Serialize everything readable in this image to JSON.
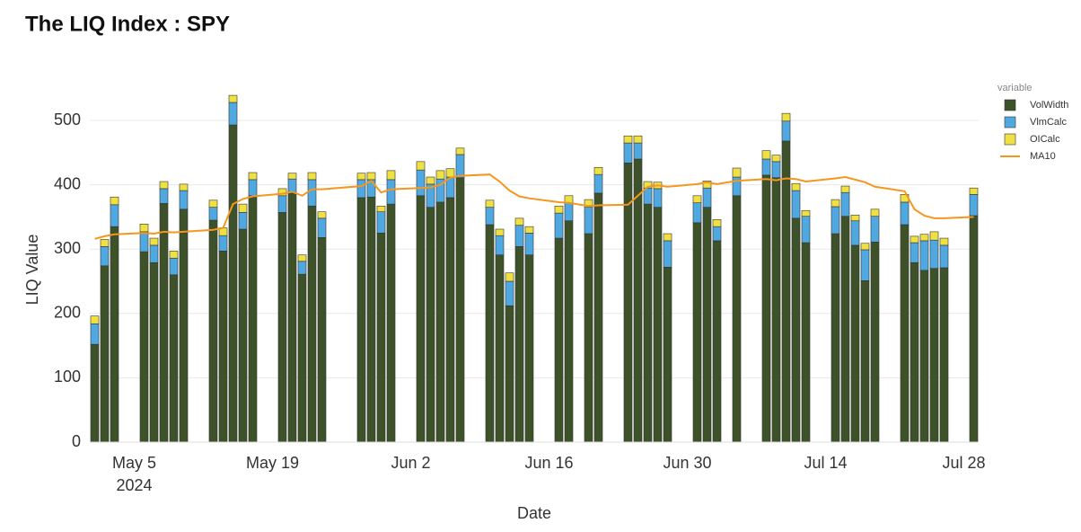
{
  "chart_data": {
    "type": "bar",
    "stacked": true,
    "title": "The LIQ Index : SPY",
    "xlabel": "Date",
    "ylabel": "LIQ Value",
    "legend_title": "variable",
    "legend": "right",
    "x": [
      "2024-05-01",
      "2024-05-02",
      "2024-05-03",
      "2024-05-06",
      "2024-05-07",
      "2024-05-08",
      "2024-05-09",
      "2024-05-10",
      "2024-05-13",
      "2024-05-14",
      "2024-05-15",
      "2024-05-16",
      "2024-05-17",
      "2024-05-20",
      "2024-05-21",
      "2024-05-22",
      "2024-05-23",
      "2024-05-24",
      "2024-05-28",
      "2024-05-29",
      "2024-05-30",
      "2024-05-31",
      "2024-06-03",
      "2024-06-04",
      "2024-06-05",
      "2024-06-06",
      "2024-06-07",
      "2024-06-10",
      "2024-06-11",
      "2024-06-12",
      "2024-06-13",
      "2024-06-14",
      "2024-06-17",
      "2024-06-18",
      "2024-06-20",
      "2024-06-21",
      "2024-06-24",
      "2024-06-25",
      "2024-06-26",
      "2024-06-27",
      "2024-06-28",
      "2024-07-01",
      "2024-07-02",
      "2024-07-03",
      "2024-07-05",
      "2024-07-08",
      "2024-07-09",
      "2024-07-10",
      "2024-07-11",
      "2024-07-12",
      "2024-07-15",
      "2024-07-16",
      "2024-07-17",
      "2024-07-18",
      "2024-07-19",
      "2024-07-22",
      "2024-07-23",
      "2024-07-24",
      "2024-07-25",
      "2024-07-26",
      "2024-07-29"
    ],
    "series": [
      {
        "name": "VolWidth",
        "color": "#3d5229",
        "values": [
          152,
          274,
          335,
          296,
          279,
          371,
          260,
          362,
          345,
          297,
          493,
          331,
          383,
          357,
          387,
          261,
          367,
          318,
          380,
          381,
          325,
          370,
          383,
          365,
          373,
          380,
          411,
          338,
          291,
          212,
          304,
          291,
          317,
          344,
          324,
          387,
          434,
          440,
          370,
          365,
          272,
          341,
          365,
          313,
          383,
          415,
          411,
          468,
          348,
          310,
          324,
          351,
          306,
          251,
          311,
          338,
          279,
          267,
          270,
          271,
          352
        ]
      },
      {
        "name": "VlmCalc",
        "color": "#4fa9e0",
        "values": [
          32,
          30,
          34,
          31,
          27,
          23,
          26,
          29,
          20,
          24,
          35,
          26,
          25,
          26,
          22,
          20,
          41,
          30,
          28,
          27,
          33,
          38,
          40,
          36,
          36,
          32,
          36,
          27,
          30,
          38,
          33,
          34,
          39,
          28,
          41,
          29,
          31,
          25,
          25,
          29,
          41,
          31,
          30,
          22,
          29,
          25,
          25,
          31,
          43,
          41,
          42,
          37,
          38,
          48,
          40,
          35,
          31,
          46,
          44,
          35,
          33
        ]
      },
      {
        "name": "OICalc",
        "color": "#f0e042",
        "values": [
          12,
          11,
          12,
          12,
          11,
          11,
          11,
          10,
          11,
          12,
          11,
          13,
          11,
          11,
          9,
          10,
          11,
          10,
          10,
          11,
          9,
          14,
          13,
          11,
          13,
          13,
          10,
          11,
          10,
          13,
          11,
          10,
          11,
          11,
          12,
          11,
          11,
          11,
          10,
          10,
          11,
          11,
          11,
          11,
          14,
          13,
          10,
          12,
          11,
          9,
          11,
          10,
          9,
          10,
          11,
          12,
          10,
          10,
          13,
          11,
          10
        ]
      },
      {
        "name": "MA10",
        "type": "line",
        "color": "#f5961e",
        "values": [
          316,
          320,
          323,
          325,
          324,
          327,
          326,
          327,
          330,
          333,
          370,
          378,
          382,
          386,
          389,
          383,
          393,
          393,
          398,
          406,
          388,
          393,
          395,
          396,
          400,
          411,
          414,
          416,
          405,
          391,
          382,
          379,
          373,
          372,
          367,
          368,
          369,
          383,
          397,
          399,
          397,
          401,
          404,
          401,
          406,
          409,
          407,
          410,
          409,
          405,
          410,
          412,
          408,
          404,
          397,
          390,
          362,
          352,
          348,
          348,
          350
        ]
      }
    ],
    "xlim": [
      "2024-04-30T12:00Z",
      "2024-07-29T12:00Z"
    ],
    "xticks": [
      {
        "value": "2024-05-05",
        "label": "May 5\n2024"
      },
      {
        "value": "2024-05-19",
        "label": "May 19"
      },
      {
        "value": "2024-06-02",
        "label": "Jun 2"
      },
      {
        "value": "2024-06-16",
        "label": "Jun 16"
      },
      {
        "value": "2024-06-30",
        "label": "Jun 30"
      },
      {
        "value": "2024-07-14",
        "label": "Jul 14"
      },
      {
        "value": "2024-07-28",
        "label": "Jul 28"
      }
    ],
    "ylim": [
      0,
      561.5
    ],
    "yticks": [
      0,
      100,
      200,
      300,
      400,
      500
    ],
    "grid": true
  }
}
